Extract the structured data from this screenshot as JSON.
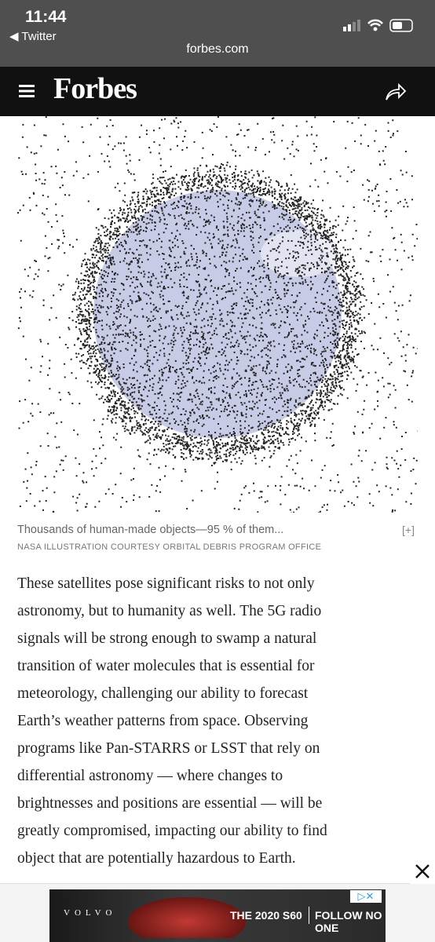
{
  "status": {
    "time": "11:44",
    "back": "◀ Twitter",
    "url": "forbes.com"
  },
  "header": {
    "brand": "Forbes"
  },
  "figure": {
    "caption": "Thousands of human-made objects—95 % of them...",
    "expand": "[+]",
    "credit": "NASA ILLUSTRATION COURTESY ORBITAL DEBRIS PROGRAM OFFICE"
  },
  "article": {
    "lines": [
      "These satellites pose significant risks to not only",
      "astronomy, but to humanity as well. The 5G radio",
      "signals will be strong enough to swamp a natural",
      "transition of water molecules that is essential for",
      "meteorology, challenging our ability to forecast",
      "Earth’s weather patterns from space. Observing",
      "programs like Pan-STARRS or LSST that rely on",
      "differential astronomy — where changes to",
      "brightnesses and positions are essential — will be",
      "greatly compromised, impacting our ability to find",
      "object that are potentially hazardous to Earth."
    ]
  },
  "ad": {
    "brand": "VOLVO",
    "model": "THE 2020 S60",
    "tagline": "FOLLOW NO ONE"
  }
}
